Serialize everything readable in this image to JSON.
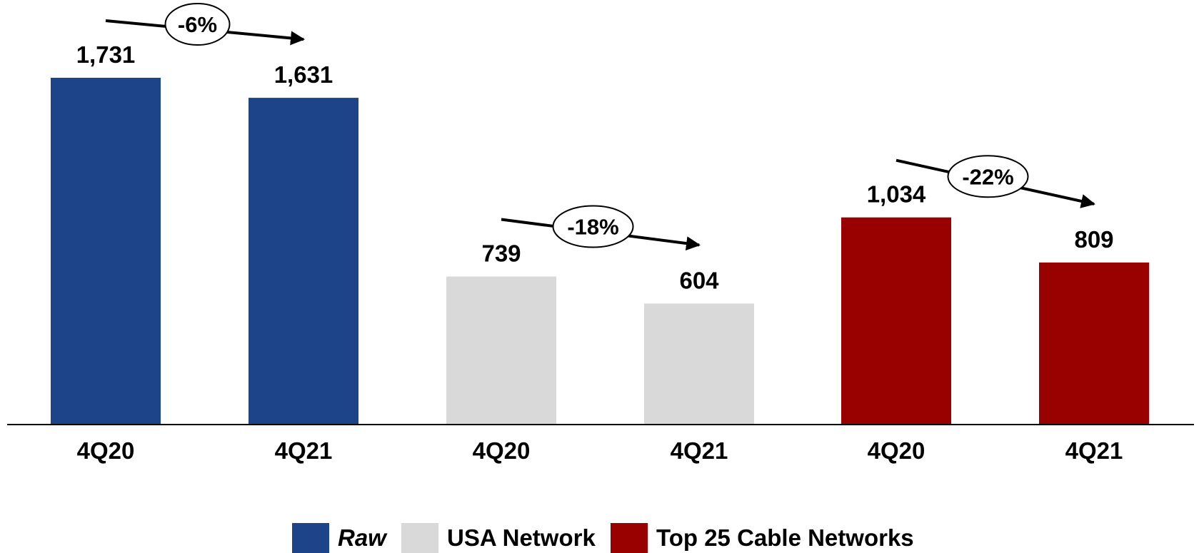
{
  "chart_data": {
    "type": "bar",
    "groups": [
      {
        "name": "Raw",
        "color": "#1d4489",
        "italic": true,
        "change": "-6%",
        "bars": [
          {
            "category": "4Q20",
            "value": 1731,
            "label": "1,731"
          },
          {
            "category": "4Q21",
            "value": 1631,
            "label": "1,631"
          }
        ]
      },
      {
        "name": "USA Network",
        "color": "#d9d9d9",
        "italic": false,
        "change": "-18%",
        "bars": [
          {
            "category": "4Q20",
            "value": 739,
            "label": "739"
          },
          {
            "category": "4Q21",
            "value": 604,
            "label": "604"
          }
        ]
      },
      {
        "name": "Top 25 Cable Networks",
        "color": "#990000",
        "italic": false,
        "change": "-22%",
        "bars": [
          {
            "category": "4Q20",
            "value": 1034,
            "label": "1,034"
          },
          {
            "category": "4Q21",
            "value": 809,
            "label": "809"
          }
        ]
      }
    ],
    "ylim": [
      0,
      1731
    ],
    "grid": false,
    "legend_position": "bottom-center"
  }
}
